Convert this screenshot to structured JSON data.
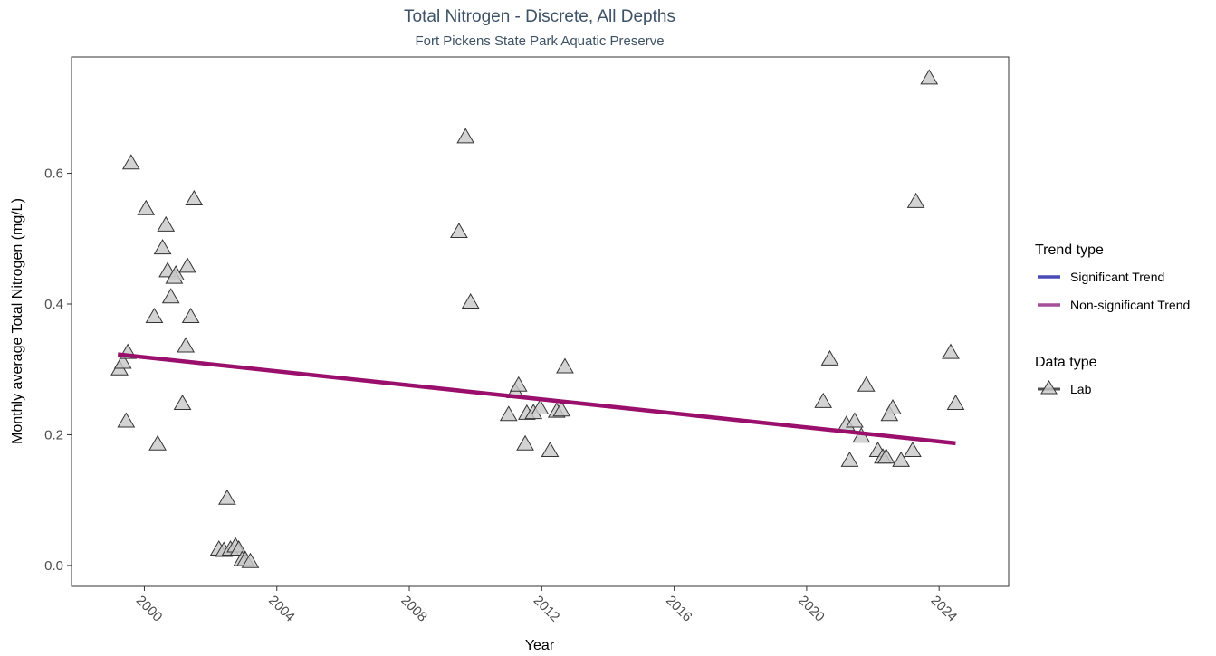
{
  "chart_data": {
    "type": "scatter",
    "title": "Total Nitrogen - Discrete, All Depths",
    "subtitle": "Fort Pickens State Park Aquatic Preserve",
    "xlabel": "Year",
    "ylabel": "Monthly average Total Nitrogen (mg/L)",
    "xlim": [
      1997.8,
      2026.1
    ],
    "ylim": [
      -0.032,
      0.778
    ],
    "x_ticks": [
      "2000",
      "2004",
      "2008",
      "2012",
      "2016",
      "2020",
      "2024"
    ],
    "y_ticks": [
      "0.0",
      "0.2",
      "0.4",
      "0.6"
    ],
    "grid": false,
    "legend_position": "right",
    "legend": {
      "trend_title": "Trend type",
      "trend_items": [
        {
          "label": "Significant Trend",
          "color": "#4b4bb8"
        },
        {
          "label": "Non-significant Trend",
          "color": "#a64d9a"
        }
      ],
      "data_title": "Data type",
      "data_items": [
        {
          "label": "Lab"
        }
      ]
    },
    "series": [
      {
        "name": "Lab",
        "marker": "triangle",
        "color": "#c8c8c8",
        "points": [
          [
            1999.25,
            0.3
          ],
          [
            1999.35,
            0.31
          ],
          [
            1999.45,
            0.22
          ],
          [
            1999.5,
            0.325
          ],
          [
            1999.6,
            0.615
          ],
          [
            2000.05,
            0.545
          ],
          [
            2000.3,
            0.38
          ],
          [
            2000.4,
            0.185
          ],
          [
            2000.55,
            0.485
          ],
          [
            2000.65,
            0.52
          ],
          [
            2000.7,
            0.45
          ],
          [
            2000.8,
            0.41
          ],
          [
            2000.9,
            0.44
          ],
          [
            2000.95,
            0.445
          ],
          [
            2001.15,
            0.247
          ],
          [
            2001.25,
            0.335
          ],
          [
            2001.3,
            0.457
          ],
          [
            2001.4,
            0.38
          ],
          [
            2001.5,
            0.56
          ],
          [
            2002.25,
            0.024
          ],
          [
            2002.4,
            0.022
          ],
          [
            2002.5,
            0.102
          ],
          [
            2002.6,
            0.024
          ],
          [
            2002.75,
            0.029
          ],
          [
            2002.85,
            0.024
          ],
          [
            2002.95,
            0.008
          ],
          [
            2003.05,
            0.008
          ],
          [
            2003.2,
            0.005
          ],
          [
            2009.5,
            0.51
          ],
          [
            2009.7,
            0.655
          ],
          [
            2009.85,
            0.402
          ],
          [
            2011.0,
            0.23
          ],
          [
            2011.2,
            0.265
          ],
          [
            2011.3,
            0.275
          ],
          [
            2011.5,
            0.185
          ],
          [
            2011.55,
            0.232
          ],
          [
            2011.75,
            0.233
          ],
          [
            2011.95,
            0.24
          ],
          [
            2012.25,
            0.175
          ],
          [
            2012.45,
            0.235
          ],
          [
            2012.6,
            0.237
          ],
          [
            2012.7,
            0.303
          ],
          [
            2020.5,
            0.25
          ],
          [
            2020.7,
            0.315
          ],
          [
            2021.2,
            0.215
          ],
          [
            2021.3,
            0.16
          ],
          [
            2021.45,
            0.22
          ],
          [
            2021.65,
            0.197
          ],
          [
            2021.8,
            0.275
          ],
          [
            2022.15,
            0.175
          ],
          [
            2022.3,
            0.165
          ],
          [
            2022.4,
            0.165
          ],
          [
            2022.5,
            0.23
          ],
          [
            2022.6,
            0.24
          ],
          [
            2022.85,
            0.16
          ],
          [
            2023.2,
            0.175
          ],
          [
            2023.3,
            0.556
          ],
          [
            2023.7,
            0.745
          ],
          [
            2024.35,
            0.325
          ],
          [
            2024.5,
            0.247
          ]
        ]
      }
    ],
    "trend_line": {
      "label": "Non-significant Trend",
      "color": "#990f6b",
      "points": [
        [
          1999.2,
          0.323
        ],
        [
          2024.5,
          0.187
        ]
      ]
    }
  }
}
